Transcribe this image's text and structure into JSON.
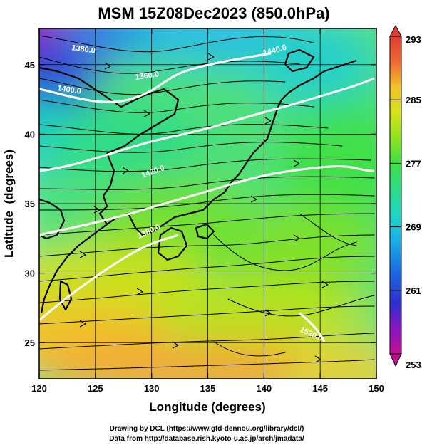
{
  "title": "MSM 15Z08Dec2023 (850.0hPa)",
  "xlabel": "Longitude (degrees)",
  "ylabel": "Latitude  (degrees)",
  "credits": {
    "line1": "Drawing by DCL (https://www.gfd-dennou.org/library/dcl/)",
    "line2": "Data from http://database.rish.kyoto-u.ac.jp/arch/jmadata/"
  },
  "map": {
    "lon_range": [
      120,
      150
    ],
    "lat_range": [
      22.4,
      47.6
    ],
    "x_ticks": [
      "120",
      "125",
      "130",
      "135",
      "140",
      "145",
      "150"
    ],
    "y_ticks": [
      "25",
      "30",
      "35",
      "40",
      "45"
    ],
    "contour_labels": [
      "1380.0",
      "1360.0",
      "1440.0",
      "1400.0",
      "1420.0",
      "1380.0",
      "1520.0"
    ]
  },
  "colorbar": {
    "min": 253,
    "max": 293,
    "tick_labels": [
      "293",
      "285",
      "277",
      "269",
      "261",
      "253"
    ],
    "colors": [
      "#c01090",
      "#8a17c2",
      "#2d2fd0",
      "#1a6de0",
      "#1bb0e6",
      "#22d6c4",
      "#2fdc86",
      "#3fe048",
      "#8ee21f",
      "#d6e21c",
      "#f2c12a",
      "#f29a33",
      "#ee6a34",
      "#e23c33"
    ]
  }
}
